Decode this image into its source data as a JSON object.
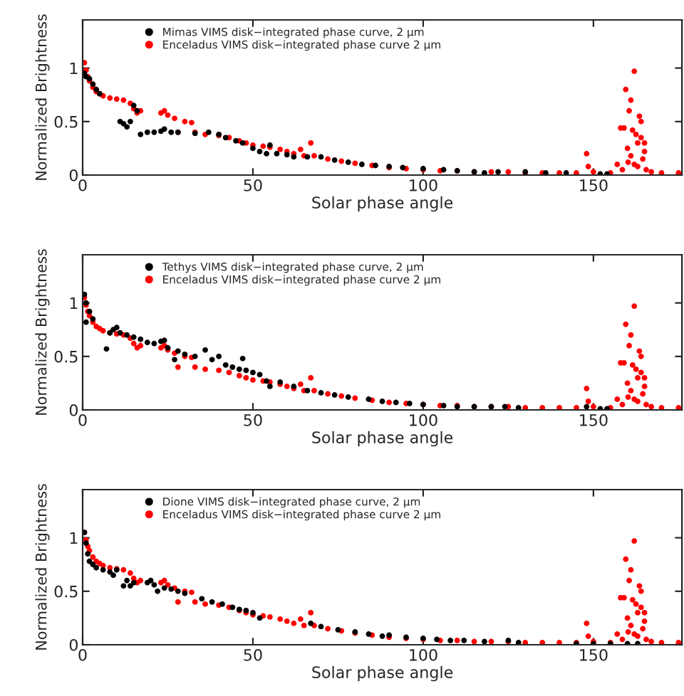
{
  "chart_data": [
    {
      "type": "scatter",
      "xlabel": "Solar phase angle",
      "ylabel": "Normalized Brightness",
      "xlim": [
        0,
        176
      ],
      "ylim": [
        0,
        1.45
      ],
      "xticks": [
        0,
        50,
        100,
        150
      ],
      "yticks": [
        0,
        0.5,
        1
      ],
      "marker": "circle",
      "legend": "top left",
      "grid": false,
      "series": [
        {
          "name": "Mimas VIMS disk−integrated phase curve, 2 μm",
          "color": "#000000",
          "x": [
            0.5,
            1,
            2,
            3,
            4,
            5,
            11,
            12,
            13,
            14,
            15,
            16,
            17,
            19,
            21,
            23,
            24,
            26,
            28,
            33,
            37,
            40,
            42,
            45,
            47,
            50,
            52,
            54,
            55,
            57,
            60,
            62,
            66,
            70,
            74,
            78,
            82,
            86,
            90,
            94,
            100,
            106,
            110,
            115,
            118,
            122,
            130,
            136,
            142,
            152,
            154
          ],
          "values": [
            0.95,
            0.92,
            0.9,
            0.85,
            0.8,
            0.76,
            0.5,
            0.48,
            0.45,
            0.5,
            0.65,
            0.6,
            0.38,
            0.4,
            0.4,
            0.41,
            0.43,
            0.4,
            0.4,
            0.39,
            0.4,
            0.38,
            0.35,
            0.32,
            0.3,
            0.25,
            0.22,
            0.2,
            0.28,
            0.2,
            0.19,
            0.17,
            0.17,
            0.17,
            0.14,
            0.12,
            0.1,
            0.09,
            0.08,
            0.07,
            0.06,
            0.05,
            0.04,
            0.03,
            0.02,
            0.03,
            0.03,
            0.02,
            0.02,
            0.01,
            0.01
          ]
        },
        {
          "name": "Enceladus VIMS disk−integrated phase curve 2 μm",
          "color": "#ff0000",
          "x": [
            0.5,
            1,
            1.5,
            2,
            3,
            4,
            5,
            6,
            8,
            10,
            12,
            14,
            15,
            16,
            17,
            23,
            24,
            25,
            27,
            30,
            32,
            28,
            33,
            36,
            40,
            43,
            46,
            48,
            50,
            53,
            55,
            58,
            60,
            62,
            64,
            65,
            67,
            68,
            72,
            76,
            80,
            85,
            90,
            95,
            100,
            105,
            110,
            115,
            120,
            125,
            130,
            135,
            140,
            145,
            148,
            148.5,
            150,
            155,
            157,
            158,
            158.5,
            159,
            159.5,
            160,
            160.2,
            160.5,
            161,
            161,
            161.5,
            162,
            162,
            162.5,
            163,
            163,
            163.5,
            164,
            164,
            164.5,
            165,
            165,
            165.5,
            167,
            170,
            175
          ],
          "values": [
            1.05,
            0.98,
            0.92,
            0.88,
            0.82,
            0.78,
            0.76,
            0.74,
            0.72,
            0.71,
            0.7,
            0.67,
            0.62,
            0.58,
            0.6,
            0.58,
            0.6,
            0.56,
            0.53,
            0.5,
            0.49,
            0.4,
            0.4,
            0.38,
            0.37,
            0.35,
            0.32,
            0.3,
            0.28,
            0.27,
            0.26,
            0.24,
            0.22,
            0.2,
            0.24,
            0.18,
            0.3,
            0.18,
            0.15,
            0.13,
            0.11,
            0.09,
            0.07,
            0.06,
            0.05,
            0.04,
            0.04,
            0.03,
            0.03,
            0.03,
            0.02,
            0.02,
            0.02,
            0.02,
            0.2,
            0.08,
            0.03,
            0.02,
            0.1,
            0.44,
            0.05,
            0.44,
            0.8,
            0.25,
            0.12,
            0.6,
            0.7,
            0.18,
            0.42,
            0.97,
            0.1,
            0.38,
            0.3,
            0.08,
            0.55,
            0.5,
            0.35,
            0.15,
            0.22,
            0.3,
            0.05,
            0.03,
            0.02,
            0.02
          ]
        }
      ]
    },
    {
      "type": "scatter",
      "xlabel": "Solar phase angle",
      "ylabel": "Normalized Brightness",
      "xlim": [
        0,
        176
      ],
      "ylim": [
        0,
        1.45
      ],
      "xticks": [
        0,
        50,
        100,
        150
      ],
      "yticks": [
        0,
        0.5,
        1
      ],
      "marker": "circle",
      "legend": "top left",
      "grid": false,
      "series": [
        {
          "name": "Tethys VIMS disk−integrated phase curve, 2 μm",
          "color": "#000000",
          "x": [
            0.5,
            1,
            1,
            2,
            3,
            7,
            8,
            9,
            10,
            11,
            13,
            15,
            17,
            19,
            21,
            23,
            24,
            25,
            27,
            28,
            30,
            33,
            36,
            38,
            40,
            42,
            44,
            46,
            47,
            48,
            50,
            52,
            54,
            55,
            58,
            62,
            66,
            70,
            74,
            78,
            84,
            88,
            92,
            96,
            100,
            106,
            110,
            115,
            120,
            124,
            128,
            148,
            152,
            154
          ],
          "values": [
            1.08,
            1.0,
            0.82,
            0.92,
            0.85,
            0.57,
            0.72,
            0.75,
            0.77,
            0.72,
            0.7,
            0.68,
            0.66,
            0.63,
            0.62,
            0.64,
            0.65,
            0.58,
            0.47,
            0.55,
            0.52,
            0.5,
            0.56,
            0.47,
            0.5,
            0.42,
            0.4,
            0.38,
            0.48,
            0.37,
            0.35,
            0.33,
            0.27,
            0.22,
            0.26,
            0.22,
            0.18,
            0.16,
            0.14,
            0.12,
            0.1,
            0.08,
            0.07,
            0.06,
            0.05,
            0.04,
            0.03,
            0.03,
            0.03,
            0.03,
            0.02,
            0.03,
            0.01,
            0.01
          ]
        },
        {
          "name": "Enceladus VIMS disk−integrated phase curve 2 μm",
          "color": "#ff0000",
          "x": [
            0.5,
            1,
            1.5,
            2,
            3,
            4,
            5,
            6,
            8,
            10,
            12,
            14,
            15,
            16,
            17,
            23,
            24,
            25,
            27,
            30,
            32,
            28,
            33,
            36,
            40,
            43,
            46,
            48,
            50,
            53,
            55,
            58,
            60,
            62,
            64,
            65,
            67,
            68,
            72,
            76,
            80,
            85,
            90,
            95,
            100,
            105,
            110,
            115,
            120,
            125,
            130,
            135,
            140,
            145,
            148,
            148.5,
            150,
            155,
            157,
            158,
            158.5,
            159,
            159.5,
            160,
            160.2,
            160.5,
            161,
            161,
            161.5,
            162,
            162,
            162.5,
            163,
            163,
            163.5,
            164,
            164,
            164.5,
            165,
            165,
            165.5,
            167,
            170,
            175
          ],
          "values": [
            1.05,
            0.98,
            0.92,
            0.88,
            0.82,
            0.78,
            0.76,
            0.74,
            0.72,
            0.71,
            0.7,
            0.67,
            0.62,
            0.58,
            0.6,
            0.58,
            0.6,
            0.56,
            0.53,
            0.5,
            0.49,
            0.4,
            0.4,
            0.38,
            0.37,
            0.35,
            0.32,
            0.3,
            0.28,
            0.27,
            0.26,
            0.24,
            0.22,
            0.2,
            0.24,
            0.18,
            0.3,
            0.18,
            0.15,
            0.13,
            0.11,
            0.09,
            0.07,
            0.06,
            0.05,
            0.04,
            0.04,
            0.03,
            0.03,
            0.03,
            0.02,
            0.02,
            0.02,
            0.02,
            0.2,
            0.08,
            0.03,
            0.02,
            0.1,
            0.44,
            0.05,
            0.44,
            0.8,
            0.25,
            0.12,
            0.6,
            0.7,
            0.18,
            0.42,
            0.97,
            0.1,
            0.38,
            0.3,
            0.08,
            0.55,
            0.5,
            0.35,
            0.15,
            0.22,
            0.3,
            0.05,
            0.03,
            0.02,
            0.02
          ]
        }
      ]
    },
    {
      "type": "scatter",
      "xlabel": "Solar phase angle",
      "ylabel": "Normalized Brightness",
      "xlim": [
        0,
        176
      ],
      "ylim": [
        0,
        1.45
      ],
      "xticks": [
        0,
        50,
        100,
        150
      ],
      "yticks": [
        0,
        0.5,
        1
      ],
      "marker": "circle",
      "legend": "top left",
      "grid": false,
      "series": [
        {
          "name": "Dione VIMS disk−integrated phase curve, 2 μm",
          "color": "#000000",
          "x": [
            0.5,
            1,
            1.5,
            2,
            3,
            4,
            6,
            8,
            9,
            10,
            12,
            13,
            14,
            15,
            19,
            20,
            21,
            22,
            24,
            26,
            28,
            30,
            35,
            38,
            41,
            44,
            46,
            48,
            50,
            52,
            67,
            70,
            75,
            80,
            84,
            88,
            90,
            95,
            100,
            104,
            108,
            112,
            118,
            125,
            128,
            145,
            150,
            155,
            160,
            163
          ],
          "values": [
            1.05,
            0.95,
            0.85,
            0.78,
            0.75,
            0.72,
            0.7,
            0.68,
            0.65,
            0.7,
            0.55,
            0.6,
            0.55,
            0.58,
            0.58,
            0.6,
            0.56,
            0.5,
            0.53,
            0.52,
            0.5,
            0.48,
            0.43,
            0.4,
            0.38,
            0.35,
            0.33,
            0.32,
            0.3,
            0.25,
            0.2,
            0.17,
            0.14,
            0.12,
            0.1,
            0.08,
            0.09,
            0.07,
            0.06,
            0.05,
            0.04,
            0.04,
            0.03,
            0.04,
            0.02,
            0.01,
            0.01,
            0.01,
            0.01,
            0.01
          ]
        },
        {
          "name": "Enceladus VIMS disk−integrated phase curve 2 μm",
          "color": "#ff0000",
          "x": [
            0.5,
            1,
            1.5,
            2,
            3,
            4,
            5,
            6,
            8,
            10,
            12,
            14,
            15,
            16,
            17,
            23,
            24,
            25,
            27,
            30,
            32,
            28,
            33,
            36,
            40,
            43,
            46,
            48,
            50,
            53,
            55,
            58,
            60,
            62,
            64,
            65,
            67,
            68,
            72,
            76,
            80,
            85,
            90,
            95,
            100,
            105,
            110,
            115,
            120,
            125,
            130,
            135,
            140,
            145,
            148,
            148.5,
            150,
            155,
            157,
            158,
            158.5,
            159,
            159.5,
            160,
            160.2,
            160.5,
            161,
            161,
            161.5,
            162,
            162,
            162.5,
            163,
            163,
            163.5,
            164,
            164,
            164.5,
            165,
            165,
            165.5,
            167,
            170,
            175
          ],
          "values": [
            1.05,
            0.98,
            0.92,
            0.88,
            0.82,
            0.78,
            0.76,
            0.74,
            0.72,
            0.71,
            0.7,
            0.67,
            0.62,
            0.58,
            0.6,
            0.58,
            0.6,
            0.56,
            0.53,
            0.5,
            0.49,
            0.4,
            0.4,
            0.38,
            0.37,
            0.35,
            0.32,
            0.3,
            0.28,
            0.27,
            0.26,
            0.24,
            0.22,
            0.2,
            0.24,
            0.18,
            0.3,
            0.18,
            0.15,
            0.13,
            0.11,
            0.09,
            0.07,
            0.06,
            0.05,
            0.04,
            0.04,
            0.03,
            0.03,
            0.03,
            0.02,
            0.02,
            0.02,
            0.02,
            0.2,
            0.08,
            0.03,
            0.02,
            0.1,
            0.44,
            0.05,
            0.44,
            0.8,
            0.25,
            0.12,
            0.6,
            0.7,
            0.18,
            0.42,
            0.97,
            0.1,
            0.38,
            0.3,
            0.08,
            0.55,
            0.5,
            0.35,
            0.15,
            0.22,
            0.3,
            0.05,
            0.03,
            0.02,
            0.02
          ]
        }
      ]
    }
  ]
}
